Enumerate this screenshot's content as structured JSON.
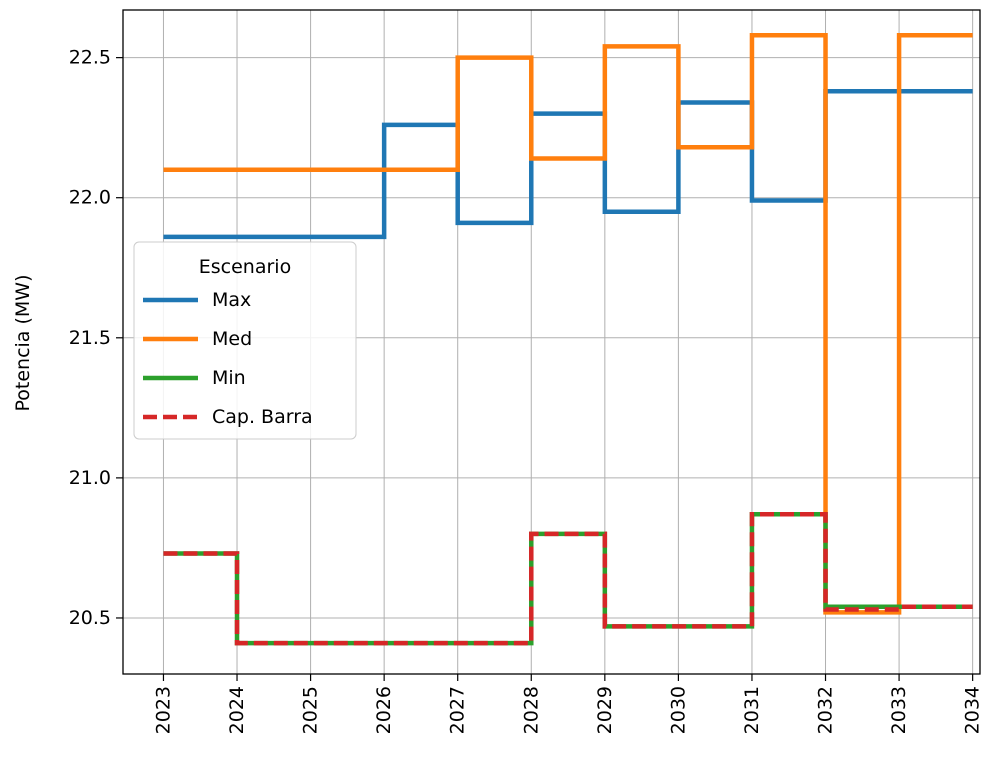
{
  "chart_data": {
    "type": "line",
    "step": "post",
    "title": "",
    "xlabel": "",
    "ylabel": "Potencia (MW)",
    "x": [
      2023,
      2024,
      2025,
      2026,
      2027,
      2028,
      2029,
      2030,
      2031,
      2032,
      2033,
      2034
    ],
    "x_tick_labels": [
      "2023",
      "2024",
      "2025",
      "2026",
      "2027",
      "2028",
      "2029",
      "2030",
      "2031",
      "2032",
      "2033",
      "2034"
    ],
    "xlim": [
      2022.45,
      2034.1
    ],
    "ylim": [
      20.3,
      22.67
    ],
    "y_ticks": [
      20.5,
      21.0,
      21.5,
      22.0,
      22.5
    ],
    "y_tick_labels": [
      "20.5",
      "21.0",
      "21.5",
      "22.0",
      "22.5"
    ],
    "grid": true,
    "legend": {
      "title": "Escenario",
      "position": "center-left"
    },
    "series": [
      {
        "name": "Max",
        "color": "#1f77b4",
        "style": "solid",
        "values": [
          21.86,
          21.86,
          21.86,
          22.26,
          21.91,
          22.3,
          21.95,
          22.34,
          21.99,
          22.38,
          22.38,
          22.38
        ]
      },
      {
        "name": "Med",
        "color": "#ff7f0e",
        "style": "solid",
        "values": [
          22.1,
          22.1,
          22.1,
          22.1,
          22.5,
          22.14,
          22.54,
          22.18,
          22.58,
          20.52,
          22.58,
          22.58
        ]
      },
      {
        "name": "Min",
        "color": "#2ca02c",
        "style": "solid",
        "values": [
          20.73,
          20.41,
          20.41,
          20.41,
          20.41,
          20.8,
          20.47,
          20.47,
          20.87,
          20.54,
          20.54,
          20.54
        ]
      },
      {
        "name": "Cap. Barra",
        "color": "#d62728",
        "style": "dashed",
        "values": [
          20.73,
          20.41,
          20.41,
          20.41,
          20.41,
          20.8,
          20.47,
          20.47,
          20.87,
          20.53,
          20.54,
          20.54
        ]
      }
    ]
  }
}
